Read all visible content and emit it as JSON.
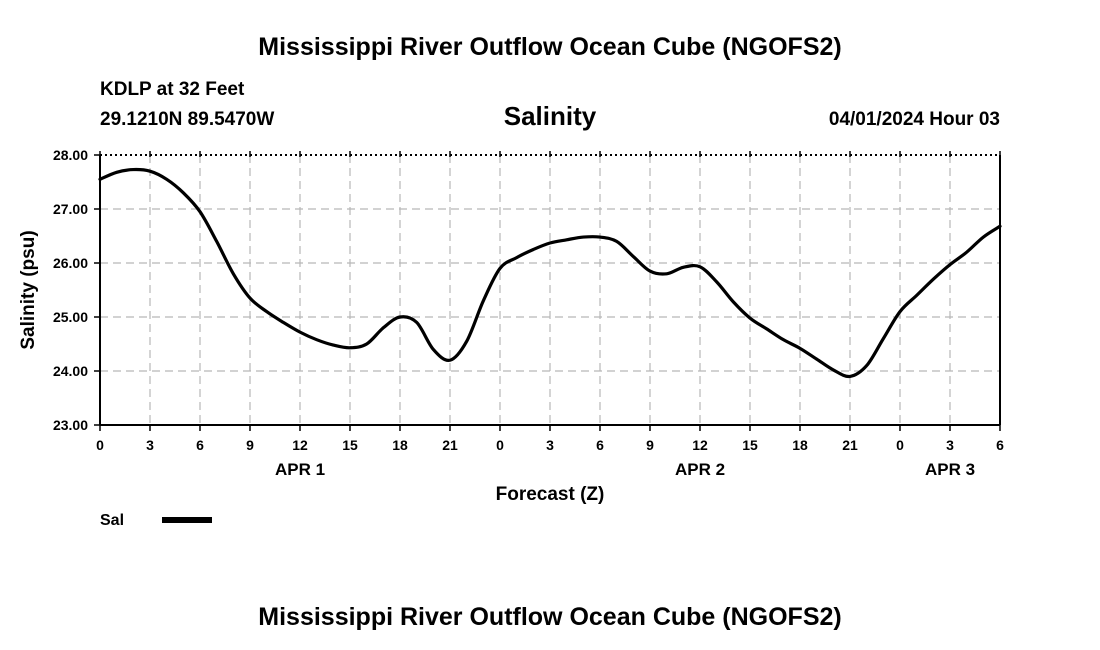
{
  "header": {
    "title": "Mississippi River Outflow Ocean Cube (NGOFS2)",
    "station": "KDLP at 32 Feet",
    "coords": "29.1210N  89.5470W",
    "variable": "Salinity",
    "datetime": "04/01/2024 Hour 03"
  },
  "footer": {
    "title": "Mississippi River Outflow Ocean Cube (NGOFS2)"
  },
  "chart_data": {
    "type": "line",
    "title": "Salinity",
    "xlabel": "Forecast (Z)",
    "ylabel": "Salinity (psu)",
    "xlim": [
      0,
      54
    ],
    "ylim": [
      23.0,
      28.0
    ],
    "x_ticks": [
      0,
      3,
      6,
      9,
      12,
      15,
      18,
      21,
      24,
      27,
      30,
      33,
      36,
      39,
      42,
      45,
      48,
      51,
      54
    ],
    "x_tick_labels": [
      "0",
      "3",
      "6",
      "9",
      "12",
      "15",
      "18",
      "21",
      "0",
      "3",
      "6",
      "9",
      "12",
      "15",
      "18",
      "21",
      "0",
      "3",
      "6"
    ],
    "y_ticks": [
      23.0,
      24.0,
      25.0,
      26.0,
      27.0,
      28.0
    ],
    "y_tick_labels": [
      "23.00",
      "24.00",
      "25.00",
      "26.00",
      "27.00",
      "28.00"
    ],
    "day_labels": [
      {
        "x": 12,
        "label": "APR 1"
      },
      {
        "x": 36,
        "label": "APR 2"
      },
      {
        "x": 51,
        "label": "APR 3"
      }
    ],
    "grid": true,
    "legend_position": "bottom-left",
    "series": [
      {
        "name": "Sal",
        "color": "#000000",
        "x": [
          0,
          1,
          2,
          3,
          4,
          5,
          6,
          7,
          8,
          9,
          10,
          11,
          12,
          13,
          14,
          15,
          16,
          17,
          18,
          19,
          20,
          21,
          22,
          23,
          24,
          25,
          26,
          27,
          28,
          29,
          30,
          31,
          32,
          33,
          34,
          35,
          36,
          37,
          38,
          39,
          40,
          41,
          42,
          43,
          44,
          45,
          46,
          47,
          48,
          49,
          50,
          51,
          52,
          53,
          54
        ],
        "values": [
          27.55,
          27.68,
          27.73,
          27.7,
          27.55,
          27.3,
          26.95,
          26.4,
          25.8,
          25.35,
          25.1,
          24.9,
          24.72,
          24.58,
          24.48,
          24.43,
          24.5,
          24.8,
          25.0,
          24.9,
          24.4,
          24.2,
          24.55,
          25.3,
          25.9,
          26.1,
          26.25,
          26.37,
          26.43,
          26.48,
          26.48,
          26.4,
          26.12,
          25.85,
          25.8,
          25.92,
          25.93,
          25.65,
          25.28,
          24.98,
          24.78,
          24.58,
          24.42,
          24.22,
          24.02,
          23.9,
          24.1,
          24.6,
          25.1,
          25.4,
          25.7,
          25.97,
          26.2,
          26.48,
          26.68
        ]
      }
    ]
  }
}
